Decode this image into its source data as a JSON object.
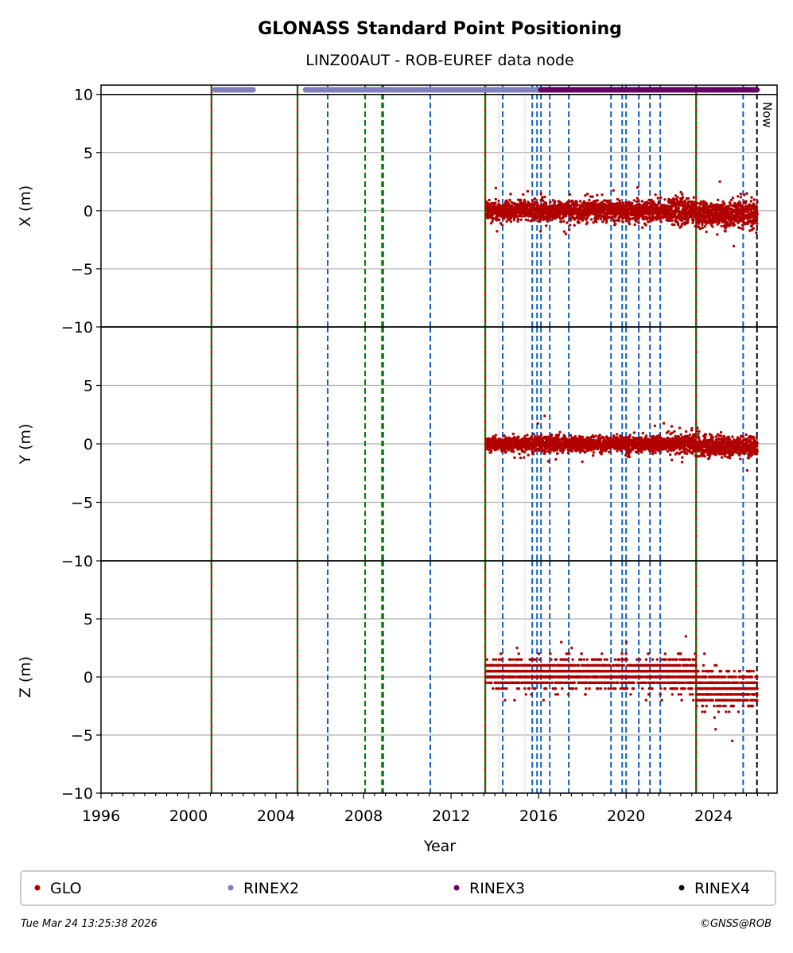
{
  "chart_data": {
    "type": "scatter",
    "title": "GLONASS Standard Point Positioning",
    "subtitle": "LINZ00AUT - ROB-EUREF data node",
    "xlabel": "Year",
    "xlim": [
      1996,
      2026.9
    ],
    "xticks": [
      "1996",
      "2000",
      "2004",
      "2008",
      "2012",
      "2016",
      "2020",
      "2024"
    ],
    "xtick_values": [
      1996,
      2000,
      2004,
      2008,
      2012,
      2016,
      2020,
      2024
    ],
    "panels": [
      {
        "ylabel": "X (m)",
        "ylim": [
          -10,
          10.8
        ],
        "yticks": [
          "10",
          "5",
          "0",
          "−5",
          "−10"
        ],
        "ytick_values": [
          10,
          5,
          0,
          -5,
          -10
        ],
        "series": {
          "name": "GLO",
          "start": 2013.6,
          "end": 2026.0,
          "mean": 0.0,
          "spread": 0.6,
          "mean_after_2023": -0.3
        }
      },
      {
        "ylabel": "Y (m)",
        "ylim": [
          -10,
          10
        ],
        "yticks": [
          "5",
          "0",
          "−5",
          "−10"
        ],
        "ytick_values": [
          5,
          0,
          -5,
          -10
        ],
        "series": {
          "name": "GLO",
          "start": 2013.6,
          "end": 2026.0,
          "mean": 0.0,
          "spread": 0.45,
          "mean_after_2023": -0.2
        }
      },
      {
        "ylabel": "Z (m)",
        "ylim": [
          -10,
          10
        ],
        "yticks": [
          "5",
          "0",
          "−5",
          "−10"
        ],
        "ytick_values": [
          5,
          0,
          -5,
          -10
        ],
        "series": {
          "name": "GLO",
          "start": 2013.6,
          "end": 2026.0,
          "mean": 0.3,
          "spread": 0.8,
          "mean_after_2023": -1.0,
          "quantum": 0.5
        }
      }
    ],
    "data_availability": [
      {
        "format": "RINEX2",
        "start": 2001.2,
        "end": 2002.95
      },
      {
        "format": "RINEX2",
        "start": 2005.35,
        "end": 2016.1
      },
      {
        "format": "RINEX3",
        "start": 2016.1,
        "end": 2025.98
      }
    ],
    "event_lines": {
      "receiver_antenna_change": [
        2001.05,
        2004.98,
        2013.56,
        2023.2
      ],
      "green": [
        2008.07,
        2008.87
      ],
      "blue": [
        2006.36,
        2011.05,
        2014.36,
        2015.71,
        2015.93,
        2016.11,
        2016.51,
        2017.38,
        2019.31,
        2019.82,
        2020.0,
        2020.58,
        2021.09,
        2021.56,
        2025.35
      ],
      "faint": [
        2014.18,
        2015.38
      ],
      "now": 2025.98
    },
    "now_label": "Now",
    "legend": [
      {
        "label": "GLO",
        "color": "#b00000"
      },
      {
        "label": "RINEX2",
        "color": "#7f7fbf"
      },
      {
        "label": "RINEX3",
        "color": "#660066"
      },
      {
        "label": "RINEX4",
        "color": "#1a0010"
      }
    ],
    "legend_placement": "bottom"
  },
  "footer": {
    "timestamp": "Tue Mar 24 13:25:38 2026",
    "copyright": "©GNSS@ROB"
  }
}
